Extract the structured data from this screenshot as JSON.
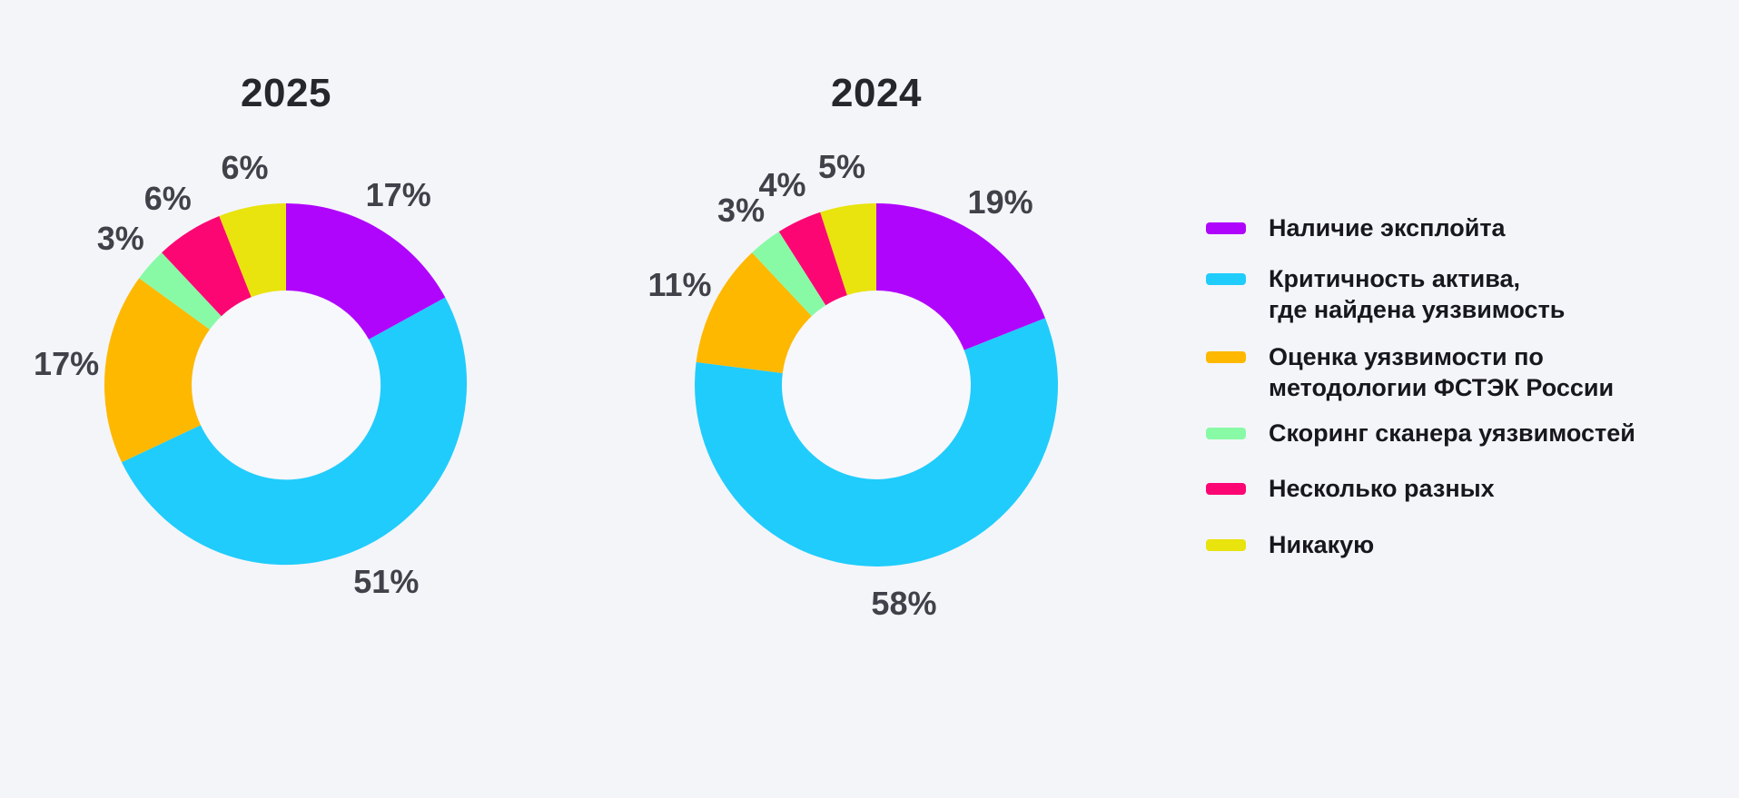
{
  "page": {
    "background": "#F4F5F9",
    "hole_color": "#F7F8FB",
    "title_color": "#26262D",
    "percent_label_color": "#41414A",
    "legend_text_color": "#17171E"
  },
  "chart_data": [
    {
      "type": "pie",
      "title": "2025",
      "hole": 0.52,
      "labels_position": "outside",
      "categories": [
        "Наличие эксплойта",
        "Критичность актива, где найдена уязвимость",
        "Оценка уязвимости по методологии ФСТЭК России",
        "Скоринг сканера уязвимостей",
        "Несколько разных",
        "Никакую"
      ],
      "values": [
        17,
        51,
        17,
        3,
        6,
        6
      ],
      "labels": [
        "17%",
        "51%",
        "17%",
        "3%",
        "6%",
        "6%"
      ],
      "colors": [
        "#B005FC",
        "#20CCFC",
        "#FEB800",
        "#88FAA6",
        "#FC0674",
        "#E9E30E"
      ]
    },
    {
      "type": "pie",
      "title": "2024",
      "hole": 0.52,
      "labels_position": "outside",
      "categories": [
        "Наличие эксплойта",
        "Критичность актива, где найдена уязвимость",
        "Оценка уязвимости по методологии ФСТЭК России",
        "Скоринг сканера уязвимостей",
        "Несколько разных",
        "Никакую"
      ],
      "values": [
        19,
        58,
        11,
        3,
        4,
        5
      ],
      "labels": [
        "19%",
        "58%",
        "11%",
        "3%",
        "4%",
        "5%"
      ],
      "colors": [
        "#B005FC",
        "#20CCFC",
        "#FEB800",
        "#88FAA6",
        "#FC0674",
        "#E9E30E"
      ]
    }
  ],
  "legend": {
    "position": "right",
    "items": [
      {
        "label": "Наличие эксплойта",
        "color": "#B005FC"
      },
      {
        "label": "Критичность актива,\nгде найдена уязвимость",
        "color": "#20CCFC"
      },
      {
        "label": "Оценка уязвимости по\nметодологии ФСТЭК России",
        "color": "#FEB800"
      },
      {
        "label": "Скоринг сканера уязвимостей",
        "color": "#88FAA6"
      },
      {
        "label": "Несколько разных",
        "color": "#FC0674"
      },
      {
        "label": "Никакую",
        "color": "#E9E30E"
      }
    ]
  }
}
